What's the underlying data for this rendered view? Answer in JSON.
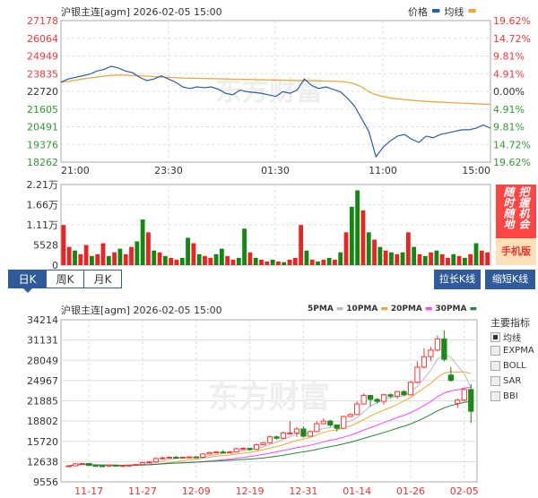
{
  "intraday": {
    "title": "沪银主连[agm] 2026-02-05 15:00",
    "legend": [
      {
        "label": "价格",
        "color": "#2a5caa"
      },
      {
        "label": "均线",
        "color": "#e8a93a"
      }
    ],
    "price_ticks": [
      "27178",
      "26064",
      "24949",
      "23835",
      "22720",
      "21605",
      "20491",
      "19376",
      "18262"
    ],
    "pct_ticks": [
      "19.62%",
      "14.72%",
      "9.81%",
      "4.91%",
      "0.00%",
      "4.91%",
      "9.81%",
      "14.72%",
      "19.62%"
    ],
    "time_ticks": [
      "21:00",
      "23:30",
      "01:30",
      "11:00",
      "15:00"
    ],
    "ylim": [
      18262,
      27178
    ],
    "price": [
      23300,
      23500,
      23600,
      23700,
      23800,
      24000,
      24100,
      24300,
      24200,
      24000,
      23900,
      23600,
      23400,
      23500,
      23700,
      23500,
      23300,
      23000,
      22900,
      23000,
      22950,
      23000,
      22850,
      22600,
      22500,
      22800,
      22700,
      22650,
      22600,
      22500,
      22400,
      22700,
      22600,
      22800,
      23500,
      23100,
      22900,
      23000,
      22850,
      22700,
      22300,
      21800,
      21000,
      20200,
      18600,
      19200,
      19600,
      19900,
      20000,
      19700,
      19500,
      19900,
      19800,
      20000,
      20100,
      20200,
      20300,
      20300,
      20400,
      20600,
      20400
    ],
    "avg": [
      23300,
      23350,
      23420,
      23500,
      23560,
      23620,
      23680,
      23730,
      23750,
      23740,
      23720,
      23700,
      23680,
      23650,
      23620,
      23600,
      23580,
      23560,
      23550,
      23540,
      23530,
      23520,
      23510,
      23500,
      23490,
      23480,
      23470,
      23460,
      23450,
      23440,
      23430,
      23420,
      23410,
      23400,
      23400,
      23390,
      23380,
      23370,
      23360,
      23340,
      23300,
      23200,
      23000,
      22700,
      22500,
      22400,
      22300,
      22250,
      22200,
      22160,
      22120,
      22090,
      22060,
      22040,
      22020,
      22000,
      21980,
      21960,
      21940,
      21920,
      21900
    ],
    "colors": {
      "up": "#ff3333",
      "down": "#339933",
      "neutral": "#333333"
    }
  },
  "volume": {
    "ticks": [
      "2.21万",
      "1.66万",
      "1.11万",
      "5528",
      "0"
    ],
    "max": 22100,
    "values": [
      11000,
      5000,
      4000,
      3000,
      5500,
      2500,
      3000,
      6000,
      2500,
      3500,
      4500,
      3000,
      5000,
      6500,
      12500,
      9000,
      4000,
      3500,
      2500,
      2000,
      1500,
      2000,
      7500,
      6000,
      3000,
      2500,
      2000,
      3000,
      4500,
      2500,
      1500,
      2000,
      10000,
      3500,
      2000,
      1500,
      1000,
      1500,
      1000,
      800,
      1500,
      2000,
      11000,
      4000,
      1500,
      1000,
      1500,
      2000,
      1500,
      3500,
      9000,
      16000,
      20500,
      15000,
      9000,
      7000,
      5000,
      4000,
      3500,
      3000,
      3500,
      9000,
      5000,
      3000,
      2500,
      3500,
      4000,
      3000,
      2000,
      3000,
      2500,
      2000,
      3000,
      6000,
      4000,
      3500
    ],
    "up": [
      1,
      1,
      0,
      1,
      1,
      0,
      1,
      1,
      0,
      1,
      0,
      1,
      1,
      0,
      0,
      1,
      0,
      1,
      0,
      1,
      1,
      0,
      0,
      1,
      0,
      1,
      1,
      0,
      0,
      1,
      1,
      0,
      0,
      1,
      0,
      1,
      1,
      0,
      1,
      0,
      1,
      1,
      1,
      0,
      1,
      0,
      1,
      0,
      1,
      0,
      1,
      0,
      0,
      1,
      0,
      1,
      0,
      1,
      0,
      1,
      0,
      1,
      0,
      1,
      0,
      1,
      0,
      1,
      1,
      0,
      1,
      0,
      1,
      0,
      1,
      1
    ]
  },
  "ad": {
    "line1": "把握机会",
    "line2": "随时随地",
    "footer": "手机版"
  },
  "tabs": [
    {
      "label": "日K",
      "active": true
    },
    {
      "label": "周K",
      "active": false
    },
    {
      "label": "月K",
      "active": false
    }
  ],
  "buttons": {
    "longer": "拉长K线",
    "shorter": "缩短K线"
  },
  "kline": {
    "title": "沪银主连[agm] 2026-02-05 15:00",
    "legend": [
      {
        "label": "5PMA",
        "color": "#bbbbbb"
      },
      {
        "label": "10PMA",
        "color": "#f0a830"
      },
      {
        "label": "20PMA",
        "color": "#ff44ff"
      },
      {
        "label": "30PMA",
        "color": "#1e8a3c"
      }
    ],
    "price_ticks": [
      "34214",
      "31131",
      "28049",
      "24967",
      "21885",
      "18802",
      "15720",
      "12638",
      "9556"
    ],
    "ylim": [
      9556,
      34214
    ],
    "date_ticks": [
      {
        "label": "11-17",
        "index": 3
      },
      {
        "label": "11-27",
        "index": 11
      },
      {
        "label": "12-09",
        "index": 19
      },
      {
        "label": "12-19",
        "index": 27
      },
      {
        "label": "12-31",
        "index": 35
      },
      {
        "label": "01-14",
        "index": 43
      },
      {
        "label": "01-26",
        "index": 51
      },
      {
        "label": "02-05",
        "index": 59
      }
    ],
    "ohlc": [
      [
        11900,
        12000,
        12100,
        11850
      ],
      [
        12000,
        12300,
        12400,
        11950
      ],
      [
        12300,
        12350,
        12450,
        12200
      ],
      [
        12350,
        12050,
        12400,
        12000
      ],
      [
        12050,
        12000,
        12150,
        11900
      ],
      [
        12000,
        11950,
        12100,
        11850
      ],
      [
        11950,
        12100,
        12200,
        11900
      ],
      [
        12100,
        11950,
        12200,
        11900
      ],
      [
        11950,
        12050,
        12100,
        11900
      ],
      [
        12050,
        12100,
        12200,
        12000
      ],
      [
        12100,
        12200,
        12300,
        12050
      ],
      [
        12200,
        12500,
        12600,
        12150
      ],
      [
        12500,
        12600,
        12700,
        12400
      ],
      [
        12600,
        13100,
        13300,
        12550
      ],
      [
        13100,
        13200,
        13400,
        13000
      ],
      [
        13200,
        13300,
        13450,
        13100
      ],
      [
        13300,
        13200,
        13500,
        13100
      ],
      [
        13200,
        13300,
        13400,
        13150
      ],
      [
        13300,
        13350,
        13450,
        13200
      ],
      [
        13350,
        13300,
        13450,
        13200
      ],
      [
        13300,
        13800,
        13900,
        13250
      ],
      [
        13800,
        14000,
        14150,
        13700
      ],
      [
        14000,
        14100,
        14250,
        13900
      ],
      [
        14100,
        14000,
        14400,
        13900
      ],
      [
        14000,
        14100,
        14300,
        13900
      ],
      [
        14100,
        14600,
        14750,
        14000
      ],
      [
        14600,
        14650,
        14800,
        14400
      ],
      [
        14650,
        14500,
        14750,
        14300
      ],
      [
        14500,
        15200,
        15400,
        14400
      ],
      [
        15200,
        15500,
        15600,
        15100
      ],
      [
        15500,
        16400,
        16600,
        15400
      ],
      [
        16400,
        16200,
        16600,
        16000
      ],
      [
        16200,
        17000,
        17200,
        16100
      ],
      [
        17000,
        17000,
        18800,
        16700
      ],
      [
        17000,
        17600,
        17900,
        16400
      ],
      [
        17600,
        16500,
        18000,
        16300
      ],
      [
        16500,
        17200,
        17400,
        16800
      ],
      [
        17200,
        18400,
        18800,
        17100
      ],
      [
        18400,
        18800,
        19200,
        18300
      ],
      [
        18800,
        18200,
        19000,
        17900
      ],
      [
        18200,
        17700,
        18300,
        17200
      ],
      [
        17700,
        19500,
        19600,
        17600
      ],
      [
        19500,
        19800,
        20000,
        19400
      ],
      [
        19800,
        21400,
        21800,
        19700
      ],
      [
        21400,
        22700,
        23000,
        21300
      ],
      [
        22700,
        22100,
        22800,
        21000
      ],
      [
        22100,
        21800,
        22300,
        21500
      ],
      [
        21800,
        22800,
        23000,
        21300
      ],
      [
        22800,
        22600,
        23000,
        22300
      ],
      [
        22600,
        23300,
        23400,
        22200
      ],
      [
        23300,
        22800,
        23500,
        22600
      ],
      [
        22800,
        24700,
        24900,
        22700
      ],
      [
        24700,
        27000,
        27900,
        24500
      ],
      [
        27000,
        28600,
        29900,
        26800
      ],
      [
        28600,
        29600,
        30100,
        27900
      ],
      [
        29600,
        31300,
        31800,
        29400
      ],
      [
        31300,
        28200,
        32600,
        27900
      ],
      [
        25800,
        25000,
        27000,
        24800
      ],
      [
        21500,
        22000,
        22200,
        20800
      ],
      [
        22000,
        23600,
        23800,
        21800
      ],
      [
        23600,
        20300,
        24400,
        18500
      ]
    ],
    "colors": {
      "up": "#ff3333",
      "down": "#1a8a1a"
    }
  },
  "indicators": {
    "title": "主要指标",
    "items": [
      {
        "label": "均线",
        "checked": true
      },
      {
        "label": "EXPMA",
        "checked": false
      },
      {
        "label": "BOLL",
        "checked": false
      },
      {
        "label": "SAR",
        "checked": false
      },
      {
        "label": "BBI",
        "checked": false
      }
    ]
  },
  "watermark": "东方财富"
}
